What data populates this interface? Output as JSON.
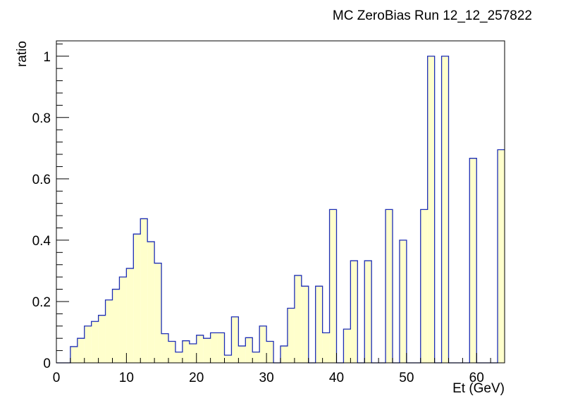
{
  "chart_data": {
    "type": "bar",
    "title": "MC ZeroBias Run 12_12_257822",
    "xlabel": "Et (GeV)",
    "ylabel": "ratio",
    "xlim": [
      0,
      64
    ],
    "ylim": [
      0,
      1.05
    ],
    "x_ticks": [
      0,
      10,
      20,
      30,
      40,
      50,
      60
    ],
    "y_ticks": [
      0,
      0.2,
      0.4,
      0.6,
      0.8,
      1
    ],
    "x_tick_labels": [
      "0",
      "10",
      "20",
      "30",
      "40",
      "50",
      "60"
    ],
    "y_tick_labels": [
      "0",
      "0.2",
      "0.4",
      "0.6",
      "0.8",
      "1"
    ],
    "bin_width": 1,
    "bin_low_edges": [
      0,
      1,
      2,
      3,
      4,
      5,
      6,
      7,
      8,
      9,
      10,
      11,
      12,
      13,
      14,
      15,
      16,
      17,
      18,
      19,
      20,
      21,
      22,
      23,
      24,
      25,
      26,
      27,
      28,
      29,
      30,
      31,
      32,
      33,
      34,
      35,
      36,
      37,
      38,
      39,
      40,
      41,
      42,
      43,
      44,
      45,
      46,
      47,
      48,
      49,
      50,
      51,
      52,
      53,
      54,
      55,
      56,
      57,
      58,
      59,
      60,
      61,
      62,
      63
    ],
    "values": [
      0,
      0,
      0.053,
      0.08,
      0.12,
      0.135,
      0.155,
      0.205,
      0.24,
      0.28,
      0.308,
      0.42,
      0.47,
      0.395,
      0.325,
      0.095,
      0.07,
      0.035,
      0.072,
      0.062,
      0.09,
      0.08,
      0.098,
      0.098,
      0.025,
      0.15,
      0.055,
      0.082,
      0.035,
      0.12,
      0.07,
      0,
      0.055,
      0.178,
      0.285,
      0.25,
      0,
      0.25,
      0.098,
      0.5,
      0,
      0.11,
      0.333,
      0,
      0.333,
      0,
      0,
      0.5,
      0,
      0.4,
      0,
      0,
      0.5,
      1,
      0,
      1,
      0,
      0,
      0,
      0.667,
      0,
      0,
      0,
      0.695
    ],
    "colors": {
      "fill": "#ffffcc",
      "line": "#1c2db5",
      "frame": "#000000"
    },
    "grid": false,
    "legend": "none"
  }
}
